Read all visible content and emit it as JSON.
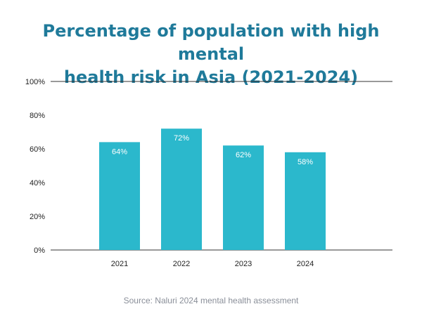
{
  "title_lines": [
    "Percentage of population with high mental",
    "health risk in Asia (2021-2024)"
  ],
  "source": "Source: Naluri 2024 mental health assessment",
  "colors": {
    "bar": "#2bb8cc",
    "title": "#1f7a9a",
    "bar_label": "#ffffff",
    "axis_text": "#222222",
    "source": "#8a8f99"
  },
  "chart_data": {
    "type": "bar",
    "title": "Percentage of population with high mental health risk in Asia (2021-2024)",
    "categories": [
      "2021",
      "2022",
      "2023",
      "2024"
    ],
    "values": [
      64,
      72,
      62,
      58
    ],
    "data_labels": [
      "64%",
      "72%",
      "62%",
      "58%"
    ],
    "ylim": [
      0,
      100
    ],
    "yticks": [
      0,
      20,
      40,
      60,
      80,
      100
    ],
    "ytick_labels": [
      "0%",
      "20%",
      "40%",
      "60%",
      "80%",
      "100%"
    ],
    "xlabel": "",
    "ylabel": "",
    "grid": "top and baseline lines only",
    "legend": "none"
  }
}
